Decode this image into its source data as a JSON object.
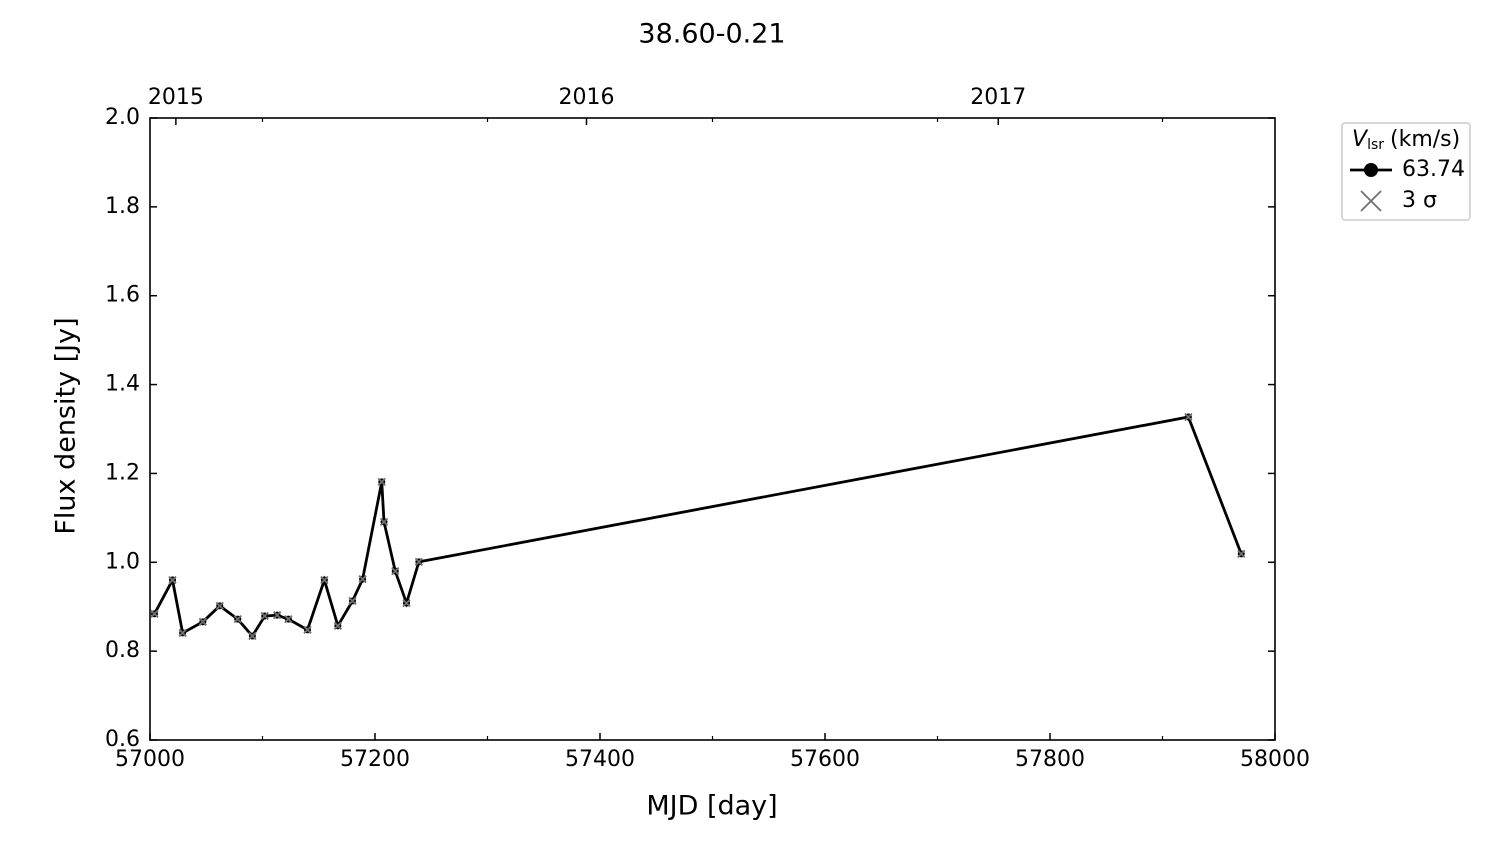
{
  "chart_data": {
    "type": "line",
    "title": "38.60-0.21",
    "xlabel": "MJD [day]",
    "ylabel": "Flux density [Jy]",
    "legend_title": {
      "symbol": "V",
      "subscript": "lsr",
      "unit": "(km/s)"
    },
    "legend_loc": "outside upper right",
    "x": [
      57004,
      57020,
      57029,
      57047,
      57062,
      57078,
      57091,
      57102,
      57113,
      57123,
      57140,
      57155,
      57167,
      57180,
      57189,
      57206,
      57208,
      57218,
      57228,
      57239,
      57923,
      57970
    ],
    "series": [
      {
        "name": "63.74",
        "color": "#000000",
        "marker": "circle",
        "values": [
          0.884,
          0.96,
          0.841,
          0.866,
          0.902,
          0.872,
          0.834,
          0.879,
          0.881,
          0.872,
          0.848,
          0.96,
          0.857,
          0.913,
          0.962,
          1.181,
          1.091,
          0.98,
          0.908,
          1.001,
          1.327,
          1.019
        ]
      },
      {
        "name": "3 σ",
        "color": "#707070",
        "marker": "x",
        "values": [
          0.884,
          0.96,
          0.841,
          0.866,
          0.902,
          0.872,
          0.834,
          0.879,
          0.881,
          0.872,
          0.848,
          0.96,
          0.857,
          0.913,
          0.962,
          1.181,
          1.091,
          0.98,
          0.908,
          1.001,
          1.327,
          1.019
        ]
      }
    ],
    "xlim": [
      57000,
      58000
    ],
    "xticks": [
      57000,
      57200,
      57400,
      57600,
      57800,
      58000
    ],
    "xminorticks": [
      57100,
      57300,
      57500,
      57700,
      57900
    ],
    "x2ticks": [
      {
        "value": 57023,
        "label": "2015"
      },
      {
        "value": 57388,
        "label": "2016"
      },
      {
        "value": 57754,
        "label": "2017"
      }
    ],
    "ylim": [
      0.6,
      2.0
    ],
    "yticks": [
      0.6,
      0.8,
      {
        "value": 1.0,
        "label": "1.0"
      },
      1.2,
      1.4,
      1.6,
      1.8,
      {
        "value": 2.0,
        "label": "2.0"
      }
    ],
    "grid": false
  }
}
